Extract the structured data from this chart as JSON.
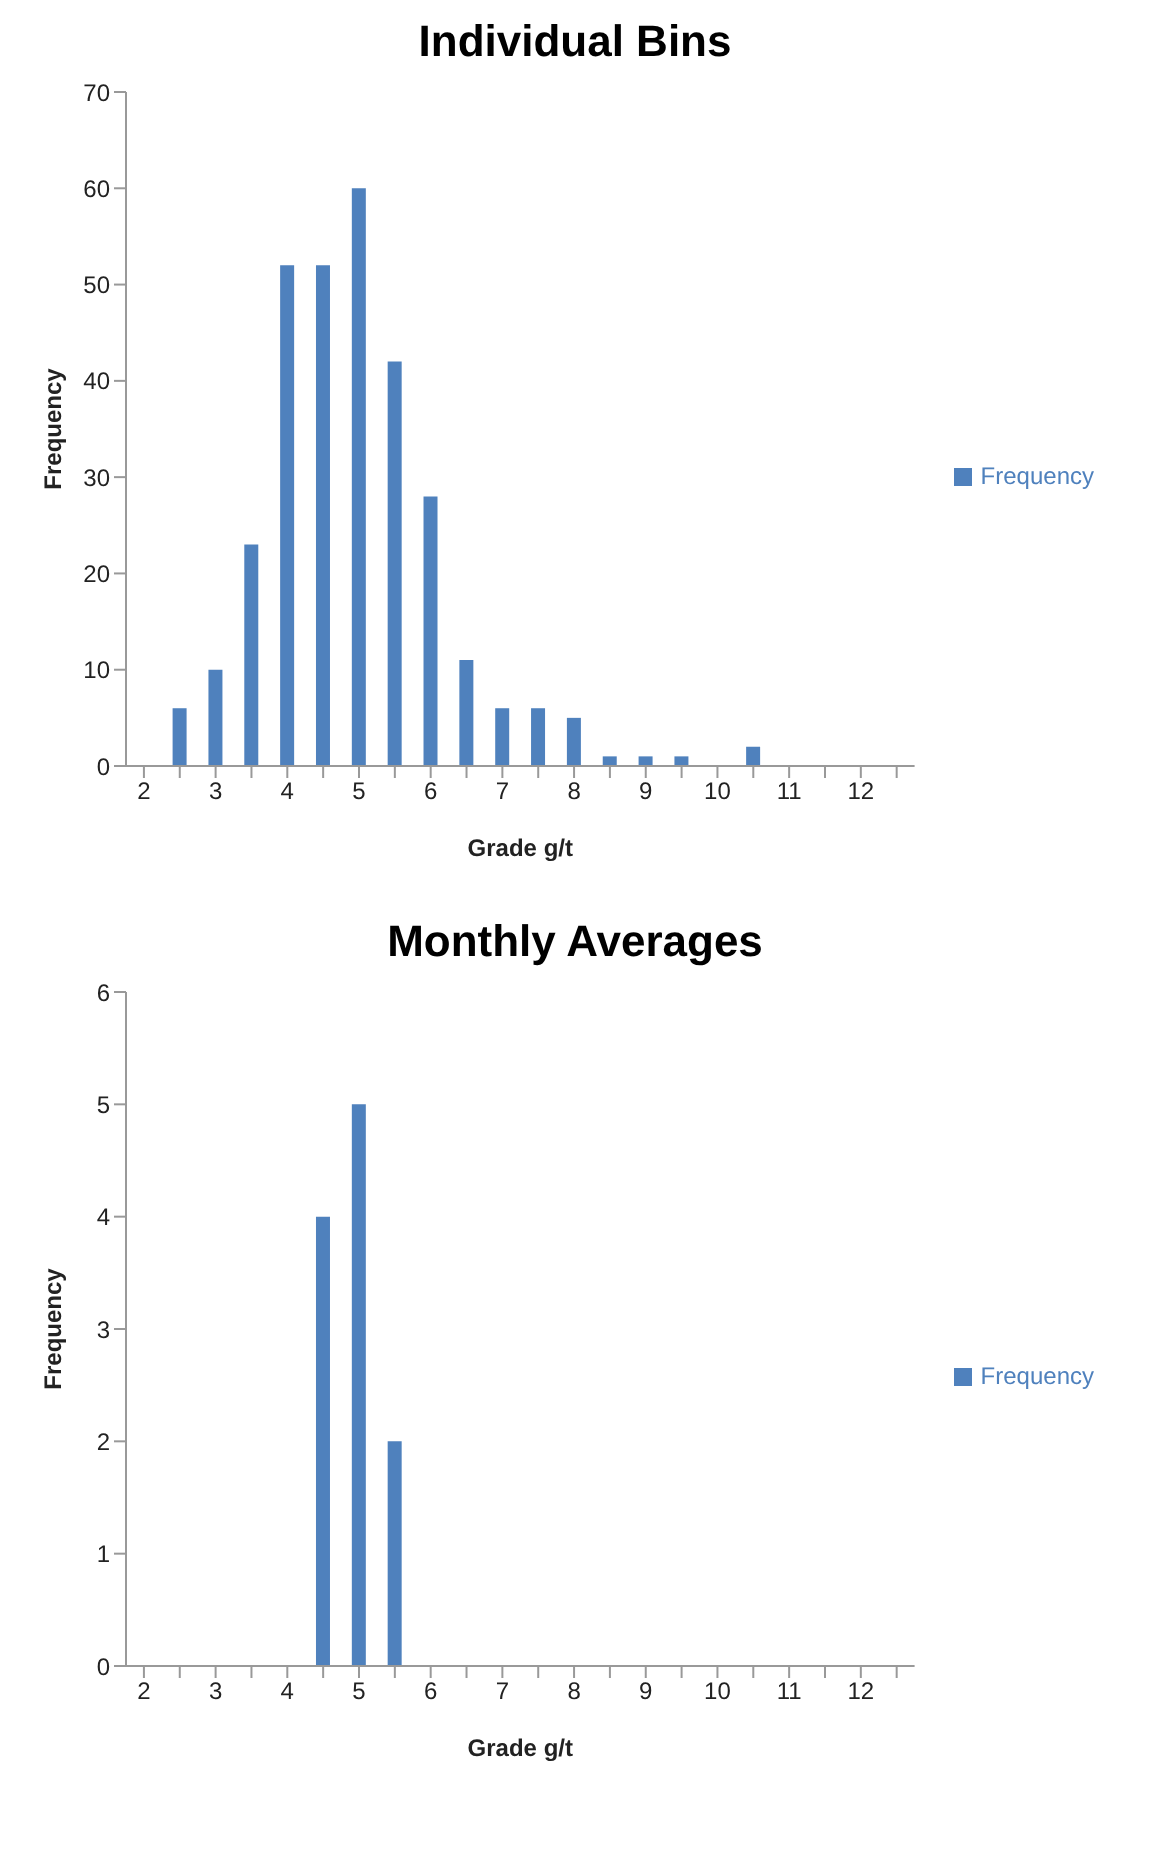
{
  "chart_data": [
    {
      "type": "bar",
      "title": "Individual Bins",
      "xlabel": "Grade g/t",
      "ylabel": "Frequency",
      "categories": [
        "2",
        null,
        "3",
        null,
        "4",
        null,
        "5",
        null,
        "6",
        null,
        "7",
        null,
        "8",
        null,
        "9",
        null,
        "10",
        null,
        "11",
        null,
        "12",
        null
      ],
      "series": [
        {
          "name": "Frequency",
          "color": "#4f81bd",
          "values": [
            0,
            6,
            10,
            23,
            52,
            52,
            60,
            42,
            28,
            11,
            6,
            6,
            5,
            1,
            1,
            1,
            0,
            2,
            0,
            0,
            0,
            0
          ]
        }
      ],
      "ylim": [
        0,
        70
      ],
      "yticks": [
        0,
        10,
        20,
        30,
        40,
        50,
        60,
        70
      ],
      "legend": "right",
      "grid": false
    },
    {
      "type": "bar",
      "title": "Monthly Averages",
      "xlabel": "Grade g/t",
      "ylabel": "Frequency",
      "categories": [
        "2",
        null,
        "3",
        null,
        "4",
        null,
        "5",
        null,
        "6",
        null,
        "7",
        null,
        "8",
        null,
        "9",
        null,
        "10",
        null,
        "11",
        null,
        "12",
        null
      ],
      "series": [
        {
          "name": "Frequency",
          "color": "#4f81bd",
          "values": [
            0,
            0,
            0,
            0,
            0,
            4,
            5,
            2,
            0,
            0,
            0,
            0,
            0,
            0,
            0,
            0,
            0,
            0,
            0,
            0,
            0,
            0
          ]
        }
      ],
      "ylim": [
        0,
        6
      ],
      "yticks": [
        0,
        1,
        2,
        3,
        4,
        5,
        6
      ],
      "legend": "right",
      "grid": false
    }
  ]
}
